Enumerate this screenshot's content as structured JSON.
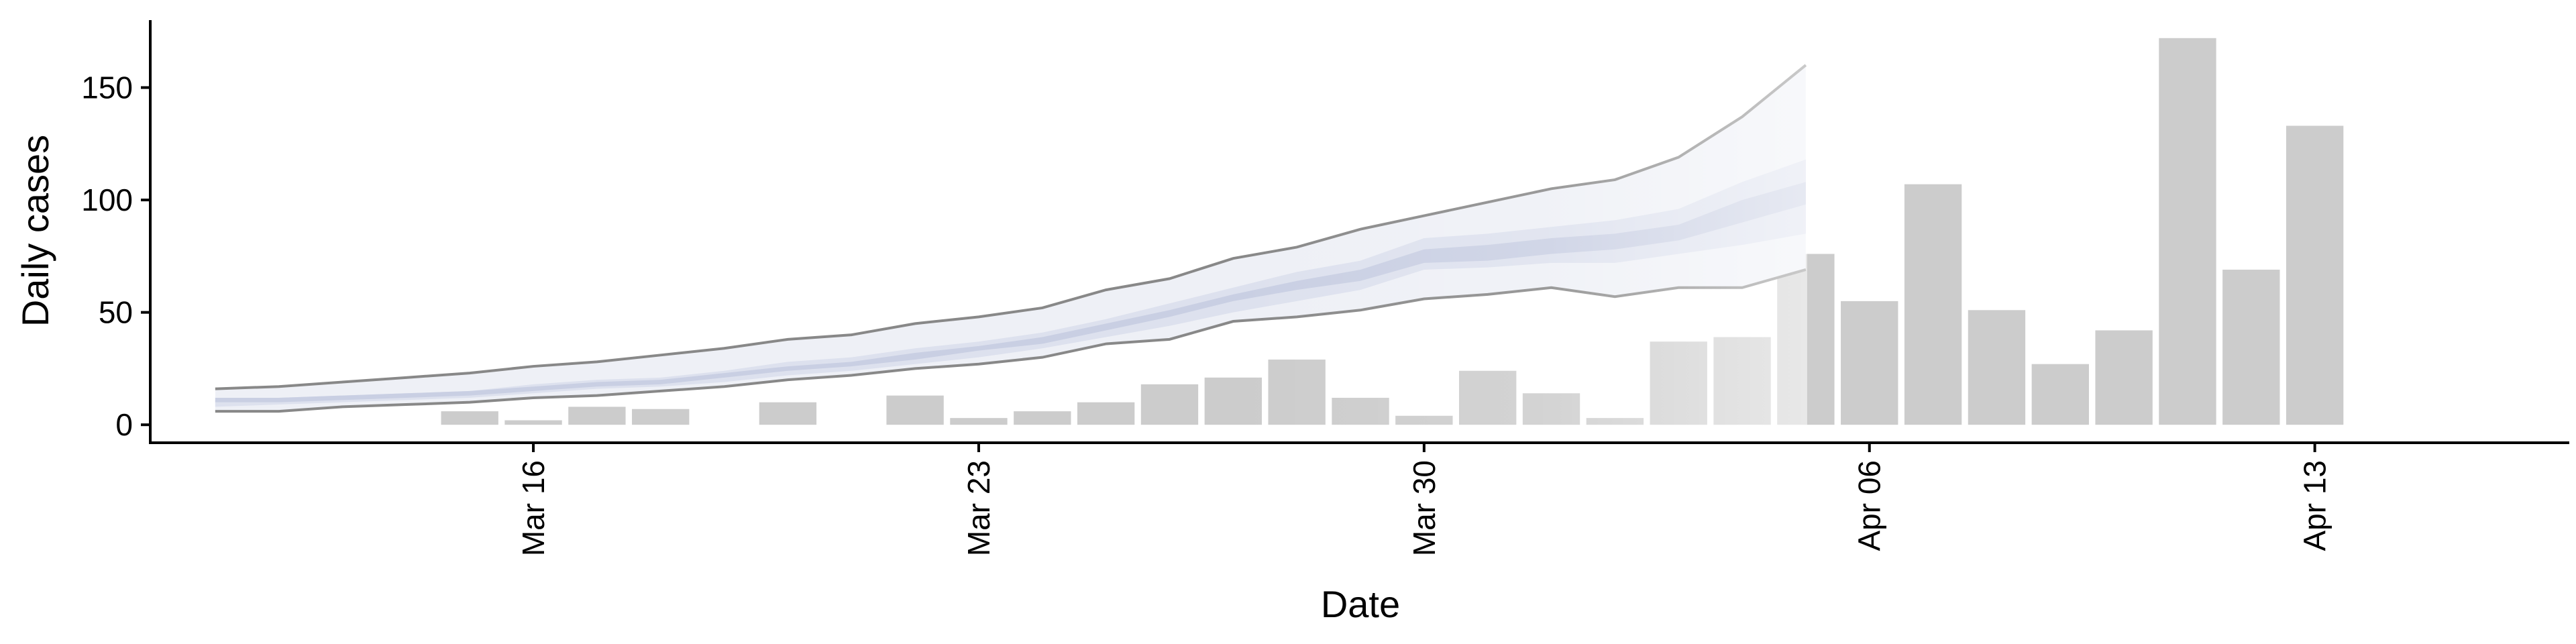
{
  "chart_data": {
    "type": "bar",
    "xlabel": "Date",
    "ylabel": "Daily cases",
    "ylim": [
      -8,
      180
    ],
    "yticks": [
      0,
      50,
      100,
      150
    ],
    "xlim": [
      "2020-03-10",
      "2020-04-17"
    ],
    "xticks": [
      {
        "date": "2020-03-16",
        "label": "Mar 16"
      },
      {
        "date": "2020-03-23",
        "label": "Mar 23"
      },
      {
        "date": "2020-03-30",
        "label": "Mar 30"
      },
      {
        "date": "2020-04-06",
        "label": "Apr 06"
      },
      {
        "date": "2020-04-13",
        "label": "Apr 13"
      }
    ],
    "grid": false,
    "bars": {
      "color": "#cccccc",
      "dates": [
        "2020-03-15",
        "2020-03-16",
        "2020-03-17",
        "2020-03-18",
        "2020-03-19",
        "2020-03-20",
        "2020-03-21",
        "2020-03-22",
        "2020-03-23",
        "2020-03-24",
        "2020-03-25",
        "2020-03-26",
        "2020-03-27",
        "2020-03-28",
        "2020-03-29",
        "2020-03-30",
        "2020-03-31",
        "2020-04-01",
        "2020-04-02",
        "2020-04-03",
        "2020-04-04",
        "2020-04-05",
        "2020-04-06",
        "2020-04-07",
        "2020-04-08",
        "2020-04-09",
        "2020-04-10",
        "2020-04-11",
        "2020-04-12",
        "2020-04-13",
        "2020-04-14"
      ],
      "values": [
        6,
        2,
        8,
        7,
        0,
        10,
        0,
        13,
        3,
        6,
        10,
        18,
        21,
        29,
        12,
        4,
        24,
        14,
        3,
        37,
        39,
        76,
        55,
        107,
        51,
        27,
        42,
        172,
        69,
        133,
        0
      ]
    },
    "band": {
      "dates": [
        "2020-03-11",
        "2020-03-12",
        "2020-03-13",
        "2020-03-14",
        "2020-03-15",
        "2020-03-16",
        "2020-03-17",
        "2020-03-18",
        "2020-03-19",
        "2020-03-20",
        "2020-03-21",
        "2020-03-22",
        "2020-03-23",
        "2020-03-24",
        "2020-03-25",
        "2020-03-26",
        "2020-03-27",
        "2020-03-28",
        "2020-03-29",
        "2020-03-30",
        "2020-03-31",
        "2020-04-01",
        "2020-04-02",
        "2020-04-03",
        "2020-04-04",
        "2020-04-05"
      ],
      "outer_low": [
        6,
        6,
        8,
        9,
        10,
        12,
        13,
        15,
        17,
        20,
        22,
        25,
        27,
        30,
        36,
        38,
        46,
        48,
        51,
        56,
        58,
        61,
        57,
        61,
        61,
        69
      ],
      "outer_high": [
        16,
        17,
        19,
        21,
        23,
        26,
        28,
        31,
        34,
        38,
        40,
        45,
        48,
        52,
        60,
        65,
        74,
        79,
        87,
        93,
        99,
        105,
        109,
        119,
        137,
        160
      ],
      "mid_low": [
        8,
        9,
        10,
        11,
        12,
        14,
        16,
        17,
        19,
        22,
        24,
        27,
        30,
        34,
        39,
        44,
        50,
        55,
        60,
        69,
        70,
        72,
        72,
        76,
        80,
        85
      ],
      "mid_high": [
        11,
        12,
        13,
        14,
        15,
        18,
        20,
        21,
        24,
        28,
        30,
        34,
        37,
        41,
        47,
        54,
        61,
        68,
        73,
        83,
        85,
        88,
        91,
        96,
        108,
        118
      ],
      "inner_low": [
        10,
        10,
        11,
        12,
        13,
        15,
        17,
        18,
        21,
        24,
        26,
        29,
        33,
        36,
        42,
        48,
        55,
        60,
        64,
        72,
        73,
        76,
        78,
        82,
        90,
        98
      ],
      "inner_high": [
        12,
        12,
        13,
        14,
        15,
        17,
        19,
        20,
        23,
        26,
        28,
        32,
        35,
        39,
        45,
        51,
        58,
        64,
        69,
        78,
        80,
        83,
        85,
        89,
        100,
        108
      ],
      "outer_color": "#eef0f6",
      "mid_color": "#dde1ee",
      "inner_color": "#c9cfe3",
      "line_color": "#888888"
    }
  }
}
